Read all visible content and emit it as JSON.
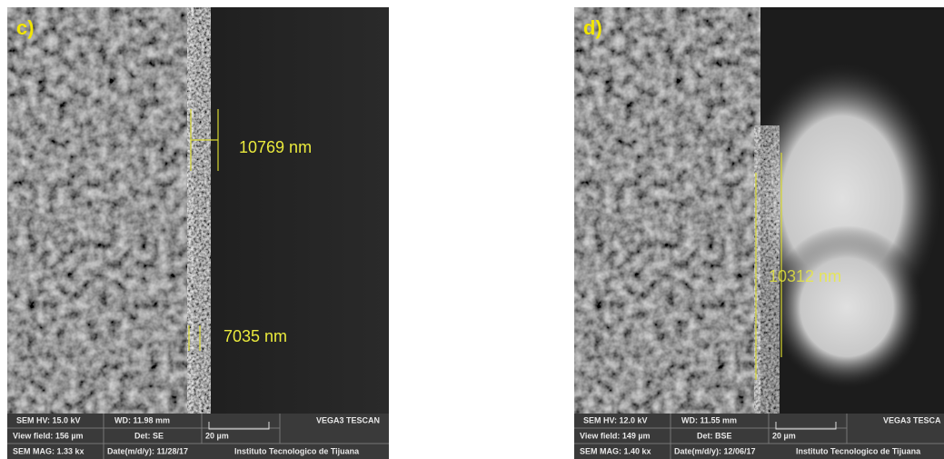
{
  "panels": [
    {
      "label": "c)",
      "measurements": [
        "10769 nm",
        "7035 nm"
      ],
      "info": {
        "hv": "SEM HV: 15.0 kV",
        "wd": "WD: 11.98 mm",
        "brand": "VEGA3 TESCAN",
        "view_field": "View field: 156 µm",
        "detector": "Det: SE",
        "scale": "20 µm",
        "mag": "SEM MAG: 1.33 kx",
        "date": "Date(m/d/y): 11/28/17",
        "institute": "Instituto Tecnologico de Tijuana"
      }
    },
    {
      "label": "d)",
      "measurements": [
        "10312 nm"
      ],
      "info": {
        "hv": "SEM HV: 12.0 kV",
        "wd": "WD: 11.55 mm",
        "brand": "VEGA3 TESCA",
        "view_field": "View field: 149 µm",
        "detector": "Det: BSE",
        "scale": "20 µm",
        "mag": "SEM MAG: 1.40 kx",
        "date": "Date(m/d/y): 12/06/17",
        "institute": "Instituto Tecnologico de Tijuana"
      }
    }
  ]
}
